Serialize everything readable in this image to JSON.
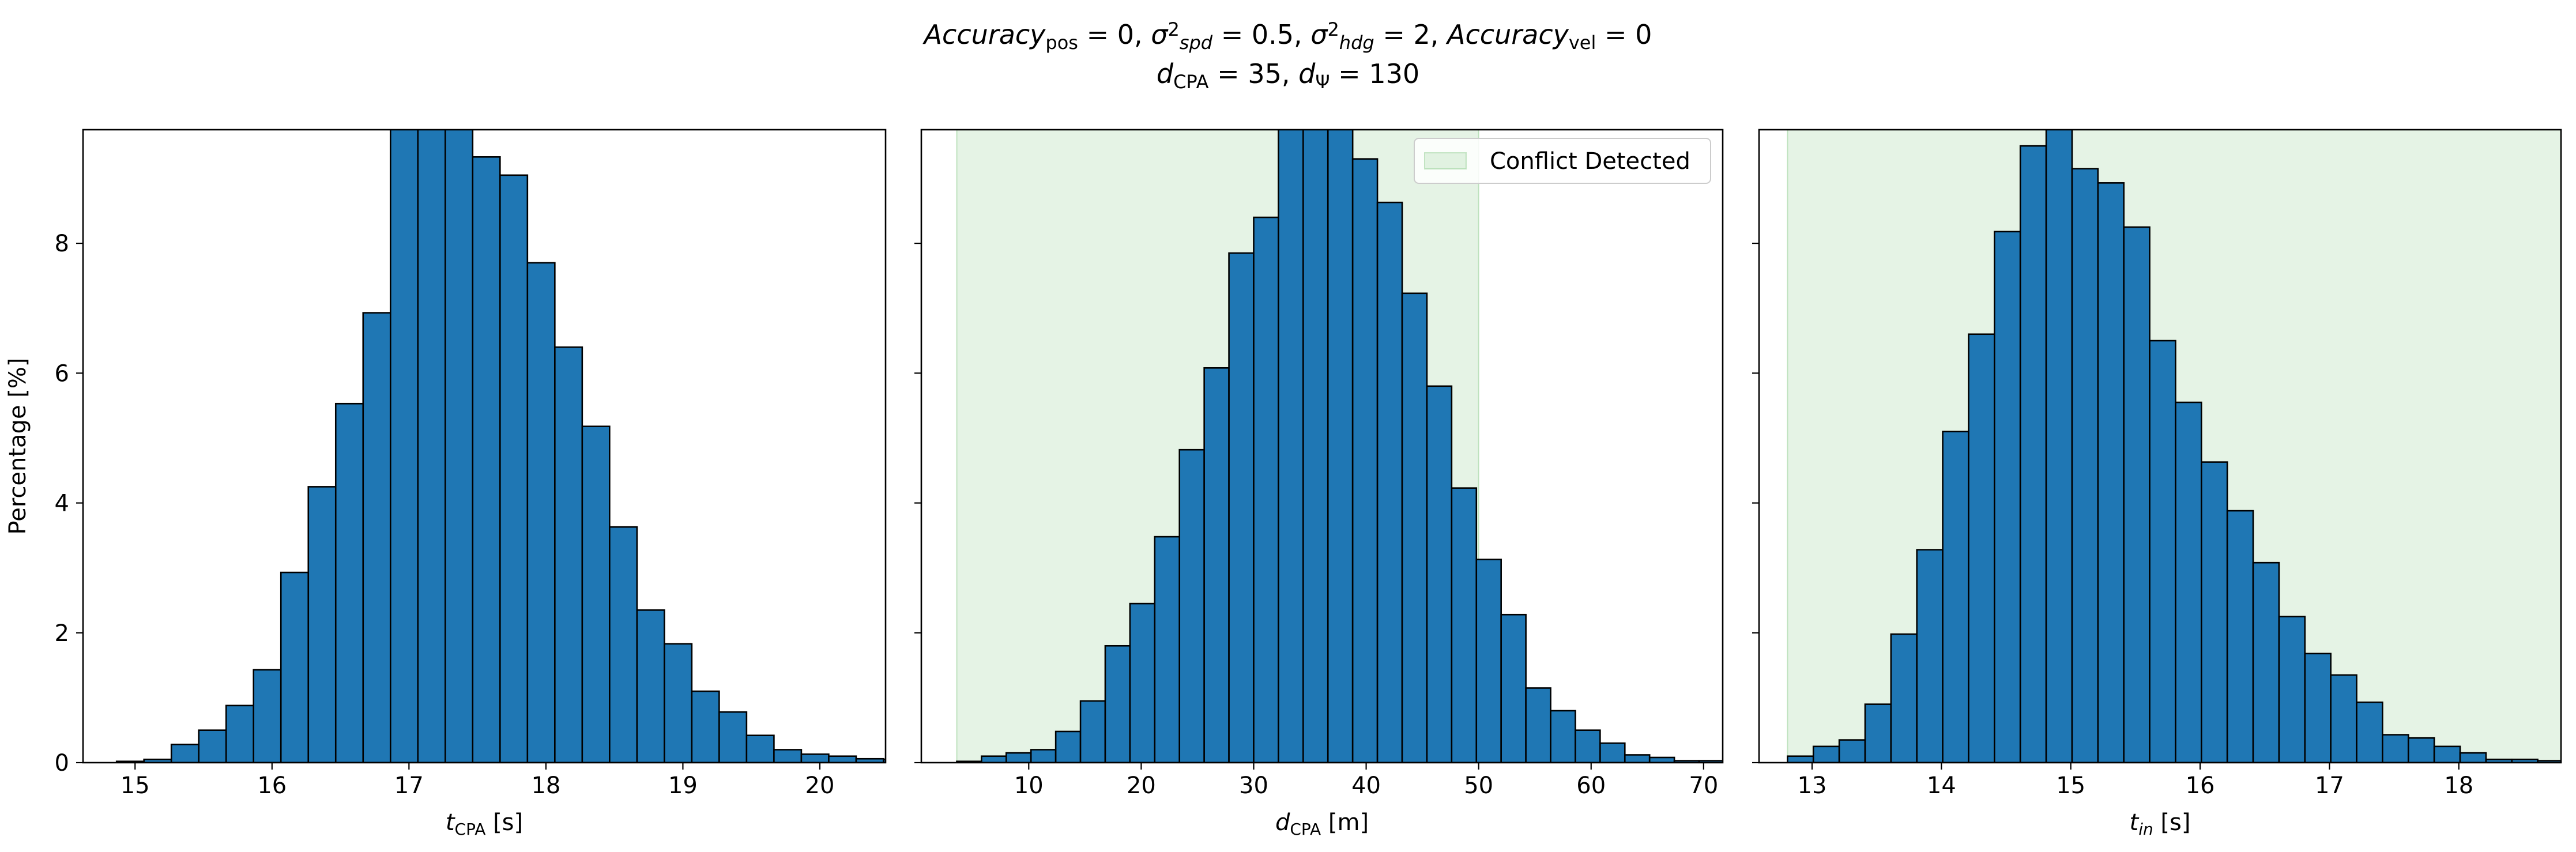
{
  "figure": {
    "colors": {
      "bar": "#1f77b4",
      "edge": "#000000",
      "shade": "#2ca02c"
    },
    "title_line1": [
      {
        "t": "Accuracy",
        "s": "i"
      },
      {
        "t": "pos",
        "s": "sub"
      },
      {
        "t": " = 0, ",
        "s": "n"
      },
      {
        "t": "σ",
        "s": "i"
      },
      {
        "t": "2",
        "s": "sup"
      },
      {
        "t": "spd",
        "s": "subi"
      },
      {
        "t": " = 0.5, ",
        "s": "n"
      },
      {
        "t": "σ",
        "s": "i"
      },
      {
        "t": "2",
        "s": "sup"
      },
      {
        "t": "hdg",
        "s": "subi"
      },
      {
        "t": " = 2, ",
        "s": "n"
      },
      {
        "t": "Accuracy",
        "s": "i"
      },
      {
        "t": "vel",
        "s": "sub"
      },
      {
        "t": " = 0",
        "s": "n"
      }
    ],
    "title_line2": [
      {
        "t": "d",
        "s": "i"
      },
      {
        "t": "CPA",
        "s": "sub"
      },
      {
        "t": " = 35, ",
        "s": "n"
      },
      {
        "t": "d",
        "s": "i"
      },
      {
        "t": "Ψ",
        "s": "sub"
      },
      {
        "t": " = 130",
        "s": "n"
      }
    ]
  },
  "chart_data": [
    {
      "type": "bar",
      "xlabel_parts": [
        {
          "t": "t",
          "s": "i"
        },
        {
          "t": "CPA",
          "s": "sub"
        },
        {
          "t": " [s]",
          "s": "n"
        }
      ],
      "ylabel": "Percentage [%]",
      "xlim": [
        14.62,
        20.48
      ],
      "ylim": [
        0,
        9.75
      ],
      "xticks": [
        15,
        16,
        17,
        18,
        19,
        20
      ],
      "yticks": [
        0,
        2,
        4,
        6,
        8
      ],
      "bin_start": 14.865,
      "bin_width": 0.2,
      "values": [
        0.02,
        0.05,
        0.28,
        0.5,
        0.88,
        1.43,
        2.93,
        4.25,
        5.53,
        6.93,
        9.95,
        10.25,
        9.88,
        9.33,
        9.05,
        7.7,
        6.4,
        5.18,
        3.63,
        2.35,
        1.83,
        1.1,
        0.78,
        0.42,
        0.2,
        0.13,
        0.1,
        0.06,
        0.05,
        0.02,
        0.0
      ],
      "shade": null,
      "legend": null
    },
    {
      "type": "bar",
      "xlabel_parts": [
        {
          "t": "d",
          "s": "i"
        },
        {
          "t": "CPA",
          "s": "sub"
        },
        {
          "t": " [m]",
          "s": "n"
        }
      ],
      "ylabel": "",
      "xlim": [
        0.45,
        71.7
      ],
      "ylim": [
        0,
        9.75
      ],
      "xticks": [
        10,
        20,
        30,
        40,
        50,
        60,
        70
      ],
      "yticks": [
        0,
        2,
        4,
        6,
        8
      ],
      "bin_start": 3.6,
      "bin_width": 2.2,
      "values": [
        0.02,
        0.1,
        0.15,
        0.2,
        0.48,
        0.95,
        1.8,
        2.45,
        3.48,
        4.82,
        6.08,
        7.85,
        8.4,
        9.85,
        10.03,
        9.9,
        9.3,
        8.63,
        7.23,
        5.8,
        4.23,
        3.13,
        2.28,
        1.15,
        0.8,
        0.5,
        0.3,
        0.12,
        0.08,
        0.03,
        0.03
      ],
      "shade": [
        3.6,
        50
      ],
      "legend": "Conflict Detected"
    },
    {
      "type": "bar",
      "xlabel_parts": [
        {
          "t": "t",
          "s": "i"
        },
        {
          "t": "in",
          "s": "subi"
        },
        {
          "t": " [s]",
          "s": "n"
        }
      ],
      "ylabel": "",
      "xlim": [
        12.59,
        18.79
      ],
      "ylim": [
        0,
        9.75
      ],
      "xticks": [
        13,
        14,
        15,
        16,
        17,
        18
      ],
      "yticks": [
        0,
        2,
        4,
        6,
        8
      ],
      "bin_start": 12.81,
      "bin_width": 0.2,
      "values": [
        0.1,
        0.25,
        0.35,
        0.9,
        1.98,
        3.28,
        5.1,
        6.6,
        8.18,
        9.5,
        10.0,
        9.15,
        8.93,
        8.25,
        6.5,
        5.55,
        4.63,
        3.88,
        3.08,
        2.25,
        1.68,
        1.35,
        0.93,
        0.43,
        0.38,
        0.25,
        0.15,
        0.05,
        0.05,
        0.03
      ],
      "shade": [
        12.81,
        22
      ],
      "legend": null
    }
  ]
}
